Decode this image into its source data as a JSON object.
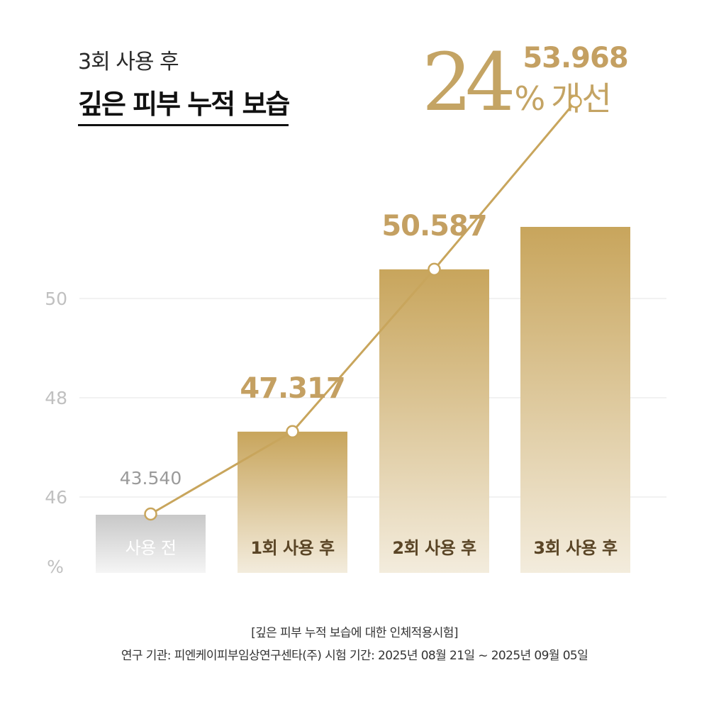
{
  "header": {
    "subtitle": "3회 사용 후",
    "title": "깊은 피부 누적 보습",
    "highlight_number": "24",
    "highlight_symbol": "%",
    "highlight_word": "개선"
  },
  "chart_data": {
    "type": "bar",
    "categories": [
      "사용 전",
      "1회 사용 후",
      "2회 사용 후",
      "3회 사용 후"
    ],
    "series": [
      {
        "values": [
          43.54,
          47.317,
          50.587,
          53.968
        ]
      }
    ],
    "value_labels": [
      "43.540",
      "47.317",
      "50.587",
      "53.968"
    ],
    "y_ticks": [
      "46",
      "48",
      "50"
    ],
    "ylabel": "%",
    "grid": true,
    "colors": {
      "baseline_top": "#c8c8c8",
      "baseline_bottom": "#f5f5f5",
      "bar_top": "#c8a55c",
      "bar_bottom": "#f3ecdd",
      "line": "#c8a55c",
      "value_label": "#c4a062",
      "baseline_label": "#9a9a9a",
      "category_label": "#5a4526",
      "baseline_category_label": "#ffffff",
      "grid": "#e6e6e6",
      "tick": "#c0c0c0"
    }
  },
  "footer": {
    "line1": "[깊은 피부 누적 보습에 대한 인체적용시험]",
    "line2": "연구 기관: 피엔케이피부임상연구센타(주)  시험 기간: 2025년 08월 21일 ~ 2025년 09월 05일"
  }
}
